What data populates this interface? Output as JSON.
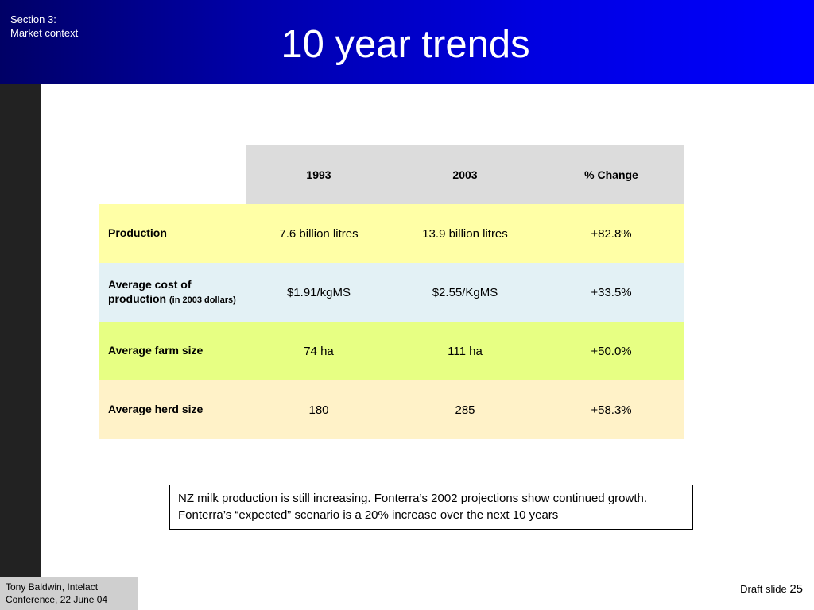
{
  "header": {
    "section_line1": "Section 3:",
    "section_line2": "Market context",
    "title": "10 year trends"
  },
  "table": {
    "columns": [
      "",
      "1993",
      "2003",
      "% Change"
    ],
    "rows": [
      {
        "label": "Production",
        "label_note": "",
        "v1993": "7.6 billion litres",
        "v2003": "13.9 billion litres",
        "change": "+82.8%"
      },
      {
        "label": "Average cost of production",
        "label_note": "(in 2003 dollars)",
        "v1993": "$1.91/kgMS",
        "v2003": "$2.55/KgMS",
        "change": "+33.5%"
      },
      {
        "label": "Average farm size",
        "label_note": "",
        "v1993": "74 ha",
        "v2003": "111 ha",
        "change": "+50.0%"
      },
      {
        "label": "Average herd size",
        "label_note": "",
        "v1993": "180",
        "v2003": "285",
        "change": "+58.3%"
      }
    ]
  },
  "note": "NZ milk production is still increasing.  Fonterra’s 2002 projections show continued growth.   Fonterra’s  “expected” scenario is a 20% increase over the next 10 years",
  "footer": {
    "author_line1": "Tony Baldwin, Intelact",
    "author_line2": "Conference, 22 June 04",
    "draft_label": "Draft slide",
    "slide_number": "25"
  },
  "colors": {
    "header_blue": "#0000ff",
    "row_production": "#ffffa6",
    "row_cost": "#e3f1f5",
    "row_farm": "#e7ff83",
    "row_herd": "#fff2c8"
  }
}
